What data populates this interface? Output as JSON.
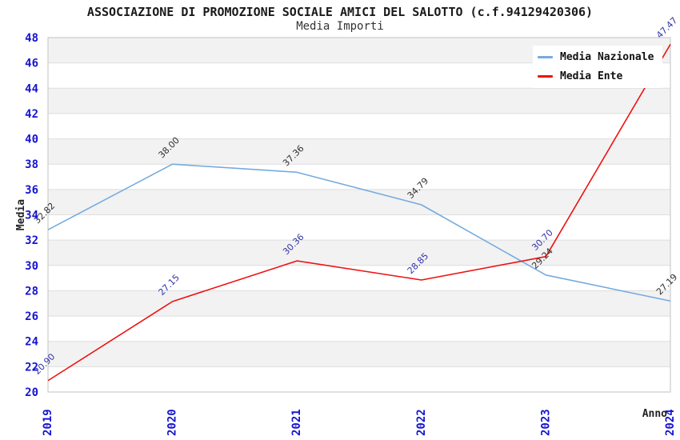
{
  "title": "ASSOCIAZIONE DI PROMOZIONE SOCIALE AMICI DEL SALOTTO (c.f.94129420306)",
  "subtitle": "Media Importi",
  "chart_data": {
    "type": "line",
    "x": [
      2019,
      2020,
      2021,
      2022,
      2023,
      2024
    ],
    "xlabel": "Anno",
    "ylabel": "Media",
    "ylim": [
      20,
      48
    ],
    "ytick_step": 2,
    "yticks": [
      20,
      22,
      24,
      26,
      28,
      30,
      32,
      34,
      36,
      38,
      40,
      42,
      44,
      46,
      48
    ],
    "grid": true,
    "plot_style": "alternating horizontal gray/white bands every 2 units, gray topmost",
    "legend_position": "top-right",
    "point_label_format": "2 decimals, rotated 45deg above-left of each point",
    "series": [
      {
        "name": "Media Nazionale",
        "color": "#76abdf",
        "label_color": "#303030",
        "values": [
          32.82,
          38.0,
          37.36,
          34.79,
          29.24,
          27.19
        ]
      },
      {
        "name": "Media Ente",
        "color": "#ee1111",
        "label_color": "#3333aa",
        "values": [
          20.9,
          27.15,
          30.36,
          28.85,
          30.7,
          47.47
        ]
      }
    ]
  },
  "colors": {
    "tick_label": "#1515d0",
    "axis_title": "#222222",
    "band_fill": "#f2f2f2",
    "grid_line": "#dedede",
    "frame": "#cccccc",
    "background": "#ffffff"
  }
}
